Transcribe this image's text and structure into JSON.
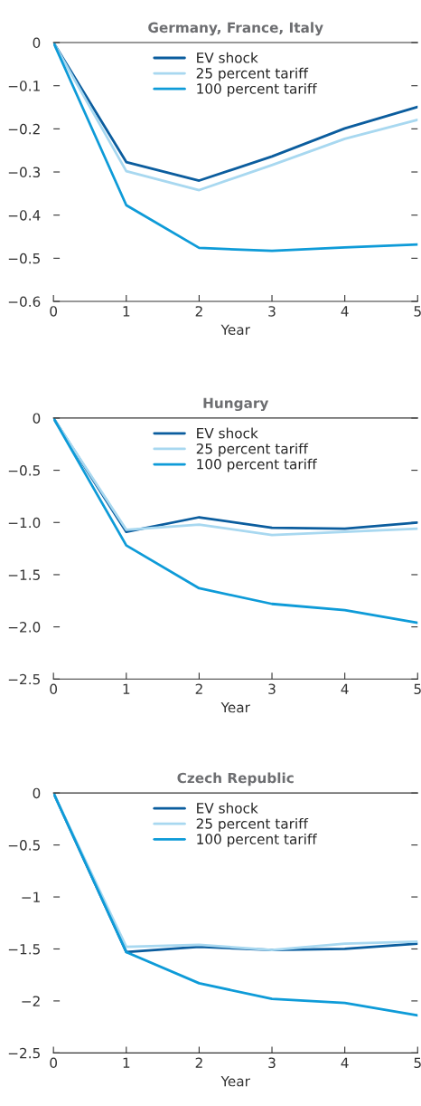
{
  "chart_data": [
    {
      "type": "line",
      "title": "Germany, France, Italy",
      "xlabel": "Year",
      "x": [
        0,
        1,
        2,
        3,
        4,
        5
      ],
      "xlim": [
        0,
        5
      ],
      "xticks": [
        0,
        1,
        2,
        3,
        4,
        5
      ],
      "ylim": [
        -0.6,
        0
      ],
      "yticks": [
        0,
        {
          "value": -0.1,
          "label": "−0.1"
        },
        {
          "value": -0.2,
          "label": "−0.2"
        },
        {
          "value": -0.3,
          "label": "−0.3"
        },
        {
          "value": -0.4,
          "label": "−0.4"
        },
        {
          "value": -0.5,
          "label": "−0.5"
        },
        {
          "value": -0.6,
          "label": "−0.6"
        }
      ],
      "legend": "top",
      "grid": false,
      "series": [
        {
          "name": "EV shock",
          "color": "#0b5d9e",
          "values": [
            0,
            -0.277,
            -0.32,
            -0.264,
            -0.199,
            -0.149
          ]
        },
        {
          "name": "25 percent tariff",
          "color": "#a8d8f0",
          "values": [
            0,
            -0.298,
            -0.342,
            -0.284,
            -0.223,
            -0.179
          ]
        },
        {
          "name": "100 percent tariff",
          "color": "#0e9bd8",
          "values": [
            0,
            -0.377,
            -0.476,
            -0.483,
            -0.475,
            -0.468
          ]
        }
      ]
    },
    {
      "type": "line",
      "title": "Hungary",
      "xlabel": "Year",
      "x": [
        0,
        1,
        2,
        3,
        4,
        5
      ],
      "xlim": [
        0,
        5
      ],
      "xticks": [
        0,
        1,
        2,
        3,
        4,
        5
      ],
      "ylim": [
        -2.5,
        0
      ],
      "yticks": [
        0,
        {
          "value": -0.5,
          "label": "−0.5"
        },
        {
          "value": -1.0,
          "label": "−1.0"
        },
        {
          "value": -1.5,
          "label": "−1.5"
        },
        {
          "value": -2.0,
          "label": "−2.0"
        },
        {
          "value": -2.5,
          "label": "−2.5"
        }
      ],
      "legend": "top",
      "grid": false,
      "series": [
        {
          "name": "EV shock",
          "color": "#0b5d9e",
          "values": [
            0,
            -1.09,
            -0.95,
            -1.05,
            -1.06,
            -1.0
          ]
        },
        {
          "name": "25 percent tariff",
          "color": "#a8d8f0",
          "values": [
            0,
            -1.07,
            -1.02,
            -1.12,
            -1.09,
            -1.06
          ]
        },
        {
          "name": "100 percent tariff",
          "color": "#0e9bd8",
          "values": [
            0,
            -1.22,
            -1.63,
            -1.78,
            -1.84,
            -1.96
          ]
        }
      ]
    },
    {
      "type": "line",
      "title": "Czech Republic",
      "xlabel": "Year",
      "x": [
        0,
        1,
        2,
        3,
        4,
        5
      ],
      "xlim": [
        0,
        5
      ],
      "xticks": [
        0,
        1,
        2,
        3,
        4,
        5
      ],
      "ylim": [
        -2.5,
        0
      ],
      "yticks": [
        0,
        {
          "value": -0.5,
          "label": "−0.5"
        },
        {
          "value": -1,
          "label": "−1"
        },
        {
          "value": -1.5,
          "label": "−1.5"
        },
        {
          "value": -2,
          "label": "−2"
        },
        {
          "value": -2.5,
          "label": "−2.5"
        }
      ],
      "legend": "top",
      "grid": false,
      "series": [
        {
          "name": "EV shock",
          "color": "#0b5d9e",
          "values": [
            0,
            -1.53,
            -1.48,
            -1.51,
            -1.5,
            -1.45
          ]
        },
        {
          "name": "25 percent tariff",
          "color": "#a8d8f0",
          "values": [
            0,
            -1.48,
            -1.46,
            -1.51,
            -1.45,
            -1.43
          ]
        },
        {
          "name": "100 percent tariff",
          "color": "#0e9bd8",
          "values": [
            0,
            -1.53,
            -1.83,
            -1.98,
            -2.02,
            -2.14
          ]
        }
      ]
    }
  ]
}
